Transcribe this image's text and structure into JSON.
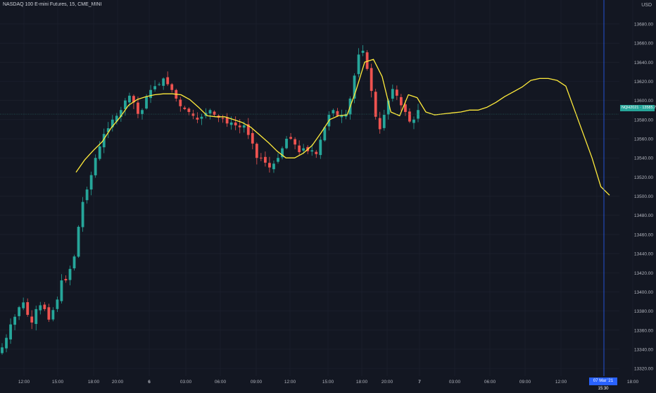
{
  "header": {
    "title": "NASDAQ 100 E-mini Futures, 15, CME_MINI",
    "currency": "USD"
  },
  "badges": {
    "price_badge": "NQH2021 · 13585.75",
    "time_badge": "07 Mar '21  15:30"
  },
  "colors": {
    "background": "#131722",
    "grid": "#1f2330",
    "up": "#26a69a",
    "down": "#ef5350",
    "indicator": "#ffeb3b",
    "crosshair": "#2962ff",
    "price_line": "#2a6b66",
    "axis_text": "#b2b5be"
  },
  "chart_data": {
    "type": "candlestick",
    "title": "NASDAQ 100 E-mini Futures, 15, CME_MINI",
    "ylim": [
      13312,
      13705
    ],
    "y_ticks": [
      13680,
      13660,
      13640,
      13620,
      13600,
      13580,
      13560,
      13540,
      13520,
      13500,
      13480,
      13460,
      13440,
      13420,
      13400,
      13380,
      13360,
      13340,
      13320
    ],
    "y_tick_labels": [
      "13680.00",
      "13660.00",
      "13640.00",
      "13620.00",
      "13600.00",
      "13580.00",
      "13560.00",
      "13540.00",
      "13520.00",
      "13500.00",
      "13480.00",
      "13460.00",
      "13440.00",
      "13420.00",
      "13400.00",
      "13380.00",
      "13360.00",
      "13340.00",
      "13320.00"
    ],
    "x_ticks": [
      "12:00",
      "15:00",
      "18:00",
      "20:00",
      "6",
      "03:00",
      "06:00",
      "09:00",
      "12:00",
      "15:00",
      "18:00",
      "20:00",
      "7",
      "03:00",
      "06:00",
      "09:00",
      "12:00",
      "15:00",
      "18:00"
    ],
    "last_price": 13585.75,
    "close_path": [
      13342,
      13352,
      13366,
      13374,
      13384,
      13389,
      13376,
      13368,
      13382,
      13386,
      13382,
      13371,
      13381,
      13392,
      13412,
      13412,
      13424,
      13437,
      13468,
      13494,
      13507,
      13522,
      13540,
      13552,
      13565,
      13571,
      13580,
      13584,
      13590,
      13600,
      13605,
      13598,
      13586,
      13590,
      13604,
      13611,
      13615,
      13617,
      13623,
      13617,
      13611,
      13602,
      13594,
      13591,
      13588,
      13584,
      13580,
      13583,
      13587,
      13590,
      13585,
      13582,
      13581,
      13576,
      13577,
      13574,
      13572,
      13574,
      13564,
      13555,
      13540,
      13540,
      13535,
      13530,
      13534,
      13540,
      13550,
      13560,
      13560,
      13554,
      13546,
      13550,
      13547,
      13548,
      13544,
      13559,
      13572,
      13585,
      13590,
      13584,
      13585,
      13586,
      13602,
      13626,
      13648,
      13652,
      13633,
      13610,
      13583,
      13570,
      13585,
      13600,
      13612,
      13605,
      13595,
      13588,
      13578,
      13580,
      13590
    ],
    "indicator_path": [
      [
        13525,
        0
      ],
      [
        13538,
        1
      ],
      [
        13548,
        2
      ],
      [
        13557,
        3
      ],
      [
        13571,
        4
      ],
      [
        13582,
        5
      ],
      [
        13595,
        6
      ],
      [
        13601,
        7
      ],
      [
        13604,
        8
      ],
      [
        13606,
        9
      ],
      [
        13607,
        10
      ],
      [
        13607,
        11
      ],
      [
        13606,
        12
      ],
      [
        13601,
        13
      ],
      [
        13593,
        14
      ],
      [
        13584,
        15
      ],
      [
        13583,
        16
      ],
      [
        13583,
        17
      ],
      [
        13580,
        18
      ],
      [
        13577,
        19
      ],
      [
        13572,
        20
      ],
      [
        13564,
        21
      ],
      [
        13556,
        22
      ],
      [
        13547,
        23
      ],
      [
        13540,
        24
      ],
      [
        13540,
        25
      ],
      [
        13545,
        26
      ],
      [
        13553,
        27
      ],
      [
        13566,
        28
      ],
      [
        13580,
        29
      ],
      [
        13584,
        30
      ],
      [
        13585,
        31
      ],
      [
        13610,
        32
      ],
      [
        13640,
        33
      ],
      [
        13643,
        34
      ],
      [
        13625,
        35
      ],
      [
        13588,
        36
      ],
      [
        13584,
        37
      ],
      [
        13606,
        38
      ],
      [
        13603,
        39
      ],
      [
        13588,
        40
      ],
      [
        13585,
        41
      ],
      [
        13586,
        42
      ],
      [
        13587,
        43
      ],
      [
        13588,
        44
      ],
      [
        13590,
        45
      ],
      [
        13590,
        46
      ],
      [
        13593,
        47
      ],
      [
        13598,
        48
      ],
      [
        13604,
        49
      ],
      [
        13609,
        50
      ],
      [
        13614,
        51
      ],
      [
        13621,
        52
      ],
      [
        13623,
        53
      ],
      [
        13623,
        54
      ],
      [
        13621,
        55
      ],
      [
        13615,
        56
      ],
      [
        13590,
        57
      ],
      [
        13565,
        58
      ],
      [
        13540,
        59
      ],
      [
        13510,
        60
      ],
      [
        13501,
        61
      ]
    ],
    "grid": true
  }
}
